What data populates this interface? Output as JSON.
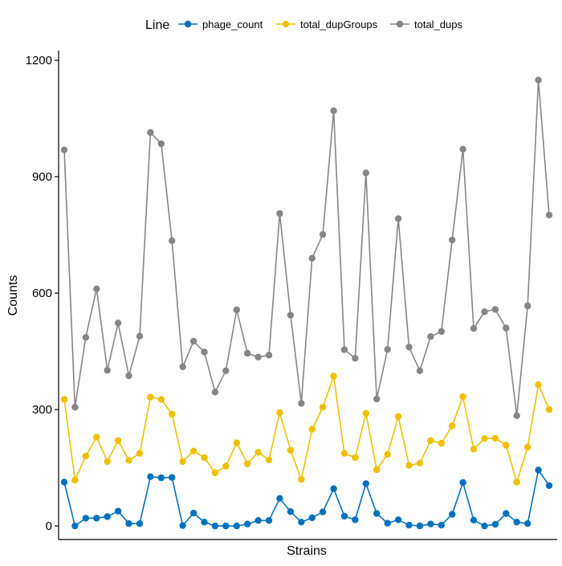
{
  "chart_data": {
    "type": "line",
    "xlabel": "Strains",
    "ylabel": "Counts",
    "ylim": [
      -35,
      1225
    ],
    "yticks": [
      0,
      300,
      600,
      900,
      1200
    ],
    "grid": false,
    "legend": {
      "title": "Line",
      "placement": "top",
      "entries": [
        "phage_count",
        "total_dupGroups",
        "total_dups"
      ]
    },
    "n_points": 46,
    "series": [
      {
        "name": "phage_count",
        "color": "#0072BD",
        "values": [
          113,
          0,
          20,
          20,
          24,
          38,
          6,
          6,
          127,
          124,
          125,
          1,
          33,
          10,
          0,
          0,
          0,
          5,
          14,
          14,
          71,
          37,
          10,
          21,
          36,
          96,
          25,
          16,
          109,
          32,
          7,
          16,
          2,
          0,
          5,
          2,
          30,
          112,
          15,
          0,
          4,
          32,
          10,
          6,
          144,
          104
        ]
      },
      {
        "name": "total_dupGroups",
        "color": "#EFC000",
        "values": [
          326,
          118,
          180,
          229,
          166,
          220,
          169,
          187,
          332,
          326,
          288,
          166,
          193,
          176,
          137,
          154,
          214,
          160,
          190,
          170,
          292,
          195,
          120,
          249,
          306,
          386,
          187,
          176,
          290,
          145,
          184,
          282,
          156,
          162,
          220,
          213,
          258,
          333,
          198,
          225,
          226,
          208,
          113,
          203,
          364,
          300
        ]
      },
      {
        "name": "total_dups",
        "color": "#868686",
        "values": [
          969,
          306,
          486,
          611,
          401,
          523,
          387,
          489,
          1014,
          985,
          735,
          410,
          476,
          448,
          345,
          400,
          557,
          445,
          435,
          440,
          805,
          543,
          316,
          690,
          751,
          1070,
          454,
          432,
          910,
          327,
          455,
          792,
          461,
          400,
          488,
          501,
          737,
          971,
          509,
          552,
          558,
          510,
          284,
          567,
          1149,
          801
        ]
      }
    ]
  }
}
